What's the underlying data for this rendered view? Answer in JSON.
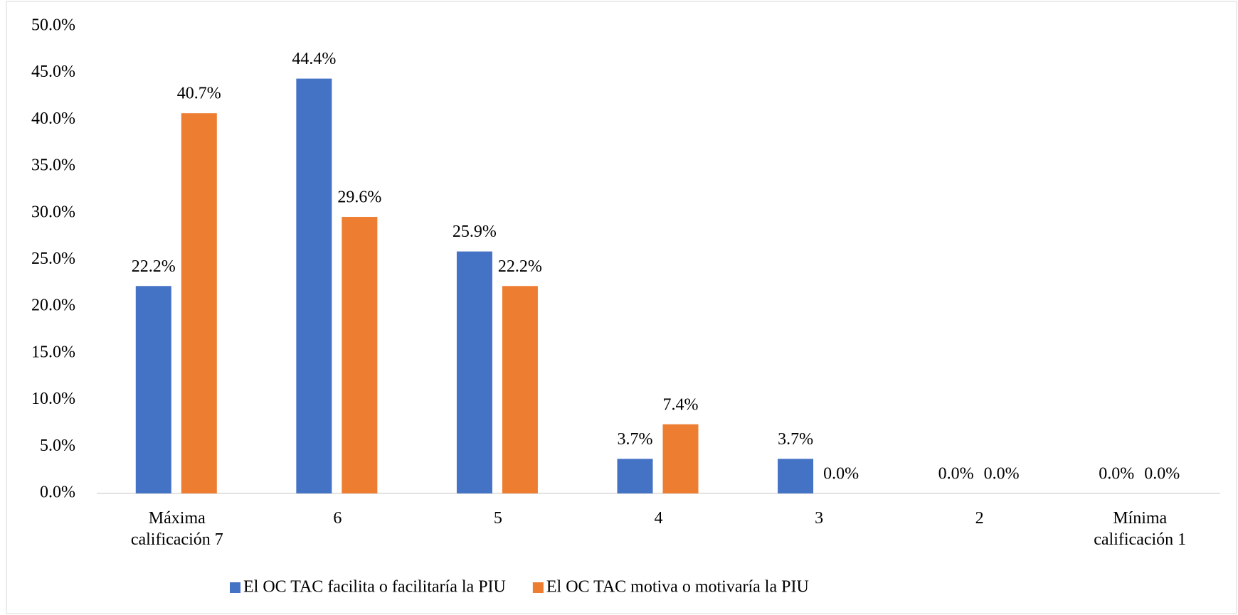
{
  "chart_data": {
    "type": "bar",
    "categories": [
      "Máxima calificación 7",
      "6",
      "5",
      "4",
      "3",
      "2",
      "Mínima calificación 1"
    ],
    "series": [
      {
        "name": "El OC TAC facilita o facilitaría la PIU",
        "color": "#4472c4",
        "values": [
          22.2,
          44.4,
          25.9,
          3.7,
          3.7,
          0.0,
          0.0
        ],
        "value_labels": [
          "22.2%",
          "44.4%",
          "25.9%",
          "3.7%",
          "3.7%",
          "0.0%",
          "0.0%"
        ]
      },
      {
        "name": "El OC TAC motiva o motivaría la PIU",
        "color": "#ed7d31",
        "values": [
          40.7,
          29.6,
          22.2,
          7.4,
          0.0,
          0.0,
          0.0
        ],
        "value_labels": [
          "40.7%",
          "29.6%",
          "22.2%",
          "7.4%",
          "0.0%",
          "0.0%",
          "0.0%"
        ]
      }
    ],
    "ylim": [
      0,
      50
    ],
    "yticks": [
      {
        "value": 0,
        "label": "0.0%"
      },
      {
        "value": 5,
        "label": "5.0%"
      },
      {
        "value": 10,
        "label": "10.0%"
      },
      {
        "value": 15,
        "label": "15.0%"
      },
      {
        "value": 20,
        "label": "20.0%"
      },
      {
        "value": 25,
        "label": "25.0%"
      },
      {
        "value": 30,
        "label": "30.0%"
      },
      {
        "value": 35,
        "label": "35.0%"
      },
      {
        "value": 40,
        "label": "40.0%"
      },
      {
        "value": 45,
        "label": "45.0%"
      },
      {
        "value": 50,
        "label": "50.0%"
      }
    ],
    "grid": false,
    "legend": "bottom"
  }
}
